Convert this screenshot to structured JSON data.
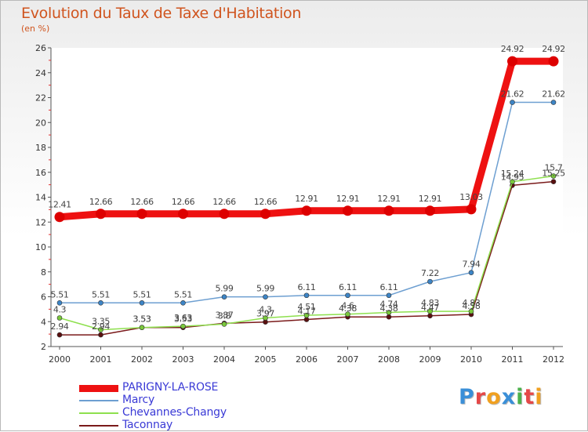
{
  "title": "Evolution du Taux de Taxe d'Habitation",
  "unit": "(en %)",
  "logo": {
    "text": "Proxiti",
    "letters": [
      {
        "ch": "P",
        "color": "#3a8fd8"
      },
      {
        "ch": "r",
        "color": "#e54848"
      },
      {
        "ch": "o",
        "color": "#f0a020"
      },
      {
        "ch": "x",
        "color": "#3a8fd8"
      },
      {
        "ch": "i",
        "color": "#4cb14c"
      },
      {
        "ch": "t",
        "color": "#e54848"
      },
      {
        "ch": "i",
        "color": "#f0a020"
      }
    ]
  },
  "chart_data": {
    "type": "line",
    "x": [
      "2000",
      "2001",
      "2002",
      "2003",
      "2004",
      "2005",
      "2006",
      "2007",
      "2008",
      "2009",
      "2010",
      "2011",
      "2012"
    ],
    "ylim": [
      2,
      26
    ],
    "yticks": [
      "2",
      "4",
      "6",
      "8",
      "10",
      "12",
      "14",
      "16",
      "18",
      "20",
      "22",
      "24",
      "26"
    ],
    "grid": false,
    "legend_position": "bottom-left",
    "series": [
      {
        "name": "PARIGNY-LA-ROSE",
        "color": "#ee1111",
        "values": [
          12.41,
          12.66,
          12.66,
          12.66,
          12.66,
          12.66,
          12.91,
          12.91,
          12.91,
          12.91,
          13.03,
          24.92,
          24.92
        ],
        "labels": [
          "12.41",
          "12.66",
          "12.66",
          "12.66",
          "12.66",
          "12.66",
          "12.91",
          "12.91",
          "12.91",
          "12.91",
          "13.03",
          "24.92",
          "24.92"
        ]
      },
      {
        "name": "Marcy",
        "color": "#6d9fd1",
        "values": [
          5.51,
          5.51,
          5.51,
          5.51,
          5.99,
          5.99,
          6.11,
          6.11,
          6.11,
          7.22,
          7.94,
          21.62,
          21.62
        ],
        "labels": [
          "5.51",
          "5.51",
          "5.51",
          "5.51",
          "5.99",
          "5.99",
          "6.11",
          "6.11",
          "6.11",
          "7.22",
          "7.94",
          "21.62",
          "21.62"
        ]
      },
      {
        "name": "Chevannes-Changy",
        "color": "#8ee04e",
        "values": [
          4.3,
          3.35,
          3.53,
          3.63,
          3.8,
          4.3,
          4.51,
          4.6,
          4.74,
          4.83,
          4.83,
          15.24,
          15.7
        ],
        "labels": [
          "4.3",
          "3.35",
          "3.53",
          "3.63",
          "3.8",
          "4.3",
          "4.51",
          "4.6",
          "4.74",
          "4.83",
          "4.83",
          "15.24",
          "15.7"
        ]
      },
      {
        "name": "Taconnay",
        "color": "#7a1a1a",
        "values": [
          2.94,
          2.94,
          3.53,
          3.53,
          3.87,
          3.97,
          4.17,
          4.38,
          4.38,
          4.47,
          4.58,
          14.95,
          15.25
        ],
        "labels": [
          "2.94",
          "2.94",
          "3.53",
          "3.53",
          "3.87",
          "3.97",
          "4.17",
          "4.38",
          "4.38",
          "4.47",
          "4.58",
          "14.95",
          "15.25"
        ]
      }
    ]
  }
}
